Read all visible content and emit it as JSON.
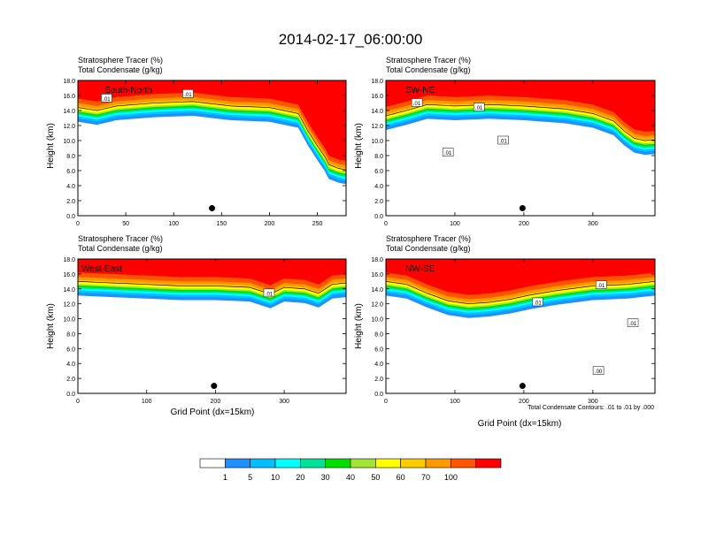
{
  "title": "2014-02-17_06:00:00",
  "colors": {
    "levels": [
      "#ffffff",
      "#1e90ff",
      "#00bfff",
      "#00ffff",
      "#00e39a",
      "#00e000",
      "#a0e632",
      "#ffff00",
      "#ffcc00",
      "#ff9900",
      "#ff5500",
      "#ff0000"
    ],
    "contour": "#000000",
    "marker": "#000000"
  },
  "chart_data": [
    {
      "type": "heatmap",
      "label": "South-North",
      "titles": [
        "Stratosphere Tracer   (%)",
        "Total Condensate   (g/kg)"
      ],
      "ylabel": "Height (km)",
      "xlabel": "",
      "xlim": [
        0,
        280
      ],
      "ylim": [
        0,
        18
      ],
      "xticks": [
        0,
        50,
        100,
        150,
        200,
        250
      ],
      "yticks": [
        "0.0",
        "2.0",
        "4.0",
        "6.0",
        "8.0",
        "10.0",
        "12.0",
        "14.0",
        "16.0",
        "18.0"
      ],
      "contour_labels": [
        {
          "text": ".01",
          "x": 30,
          "y": 15.6
        },
        {
          "text": ".01",
          "x": 115,
          "y": 16.2
        }
      ],
      "marker": {
        "x": 140,
        "y": 1.0
      },
      "tropopause": [
        [
          0,
          15.6
        ],
        [
          20,
          15.2
        ],
        [
          40,
          15.8
        ],
        [
          80,
          16.2
        ],
        [
          120,
          16.4
        ],
        [
          160,
          15.8
        ],
        [
          200,
          15.6
        ],
        [
          230,
          14.8
        ],
        [
          240,
          12.5
        ],
        [
          250,
          10.5
        ],
        [
          258,
          9.0
        ],
        [
          262,
          8.0
        ],
        [
          272,
          7.5
        ],
        [
          280,
          7.3
        ]
      ]
    },
    {
      "type": "heatmap",
      "label": "SW-NE",
      "titles": [
        "Stratosphere Tracer   (%)",
        "Total Condensate   (g/kg)"
      ],
      "ylabel": "Height (km)",
      "xlabel": "",
      "xlim": [
        0,
        390
      ],
      "ylim": [
        0,
        18
      ],
      "xticks": [
        0,
        100,
        200,
        300
      ],
      "yticks": [
        "0.0",
        "2.0",
        "4.0",
        "6.0",
        "8.0",
        "10.0",
        "12.0",
        "14.0",
        "16.0",
        "18.0"
      ],
      "contour_labels": [
        {
          "text": ".01",
          "x": 45,
          "y": 15.0
        },
        {
          "text": ".01",
          "x": 135,
          "y": 14.4
        },
        {
          "text": ".01",
          "x": 170,
          "y": 10.0
        },
        {
          "text": ".01",
          "x": 90,
          "y": 8.4
        }
      ],
      "marker": {
        "x": 198,
        "y": 1.0
      },
      "tropopause": [
        [
          0,
          14.5
        ],
        [
          30,
          15.2
        ],
        [
          60,
          16.0
        ],
        [
          100,
          15.8
        ],
        [
          150,
          16.0
        ],
        [
          200,
          15.8
        ],
        [
          260,
          15.4
        ],
        [
          300,
          14.8
        ],
        [
          330,
          13.8
        ],
        [
          345,
          12.5
        ],
        [
          360,
          11.5
        ],
        [
          375,
          11.2
        ],
        [
          390,
          11.3
        ]
      ]
    },
    {
      "type": "heatmap",
      "label": "West-East",
      "titles": [
        "Stratosphere Tracer   (%)",
        "Total Condensate   (g/kg)"
      ],
      "ylabel": "Height (km)",
      "xlabel": "Grid Point (dx=15km)",
      "xlim": [
        0,
        390
      ],
      "ylim": [
        0,
        18
      ],
      "xticks": [
        0,
        100,
        200,
        300
      ],
      "yticks": [
        "0.0",
        "2.0",
        "4.0",
        "6.0",
        "8.0",
        "10.0",
        "12.0",
        "14.0",
        "16.0",
        "18.0"
      ],
      "contour_labels": [
        {
          "text": ".01",
          "x": 278,
          "y": 13.4
        }
      ],
      "marker": {
        "x": 198,
        "y": 1.0
      },
      "tropopause": [
        [
          0,
          16.2
        ],
        [
          50,
          16.0
        ],
        [
          100,
          15.8
        ],
        [
          150,
          15.6
        ],
        [
          200,
          15.6
        ],
        [
          250,
          15.4
        ],
        [
          280,
          14.5
        ],
        [
          300,
          15.4
        ],
        [
          330,
          15.2
        ],
        [
          350,
          14.6
        ],
        [
          370,
          15.8
        ],
        [
          390,
          16.0
        ]
      ]
    },
    {
      "type": "heatmap",
      "label": "NW-SE",
      "titles": [
        "Stratosphere Tracer   (%)",
        "Total Condensate   (g/kg)"
      ],
      "ylabel": "Height (km)",
      "xlabel": "Grid Point (dx=15km)",
      "xlim": [
        0,
        390
      ],
      "ylim": [
        0,
        18
      ],
      "xticks": [
        0,
        100,
        200,
        300
      ],
      "yticks": [
        "0.0",
        "2.0",
        "4.0",
        "6.0",
        "8.0",
        "10.0",
        "12.0",
        "14.0",
        "16.0",
        "18.0"
      ],
      "contour_labels": [
        {
          "text": ".01",
          "x": 312,
          "y": 14.5
        },
        {
          "text": ".01",
          "x": 220,
          "y": 12.2
        },
        {
          "text": ".01",
          "x": 358,
          "y": 9.4
        },
        {
          "text": ".00",
          "x": 308,
          "y": 3.0
        }
      ],
      "marker": {
        "x": 198,
        "y": 1.0
      },
      "tropopause": [
        [
          0,
          16.2
        ],
        [
          30,
          15.8
        ],
        [
          60,
          14.6
        ],
        [
          90,
          13.6
        ],
        [
          120,
          13.2
        ],
        [
          150,
          13.4
        ],
        [
          180,
          13.8
        ],
        [
          210,
          14.4
        ],
        [
          250,
          15.0
        ],
        [
          300,
          15.6
        ],
        [
          350,
          15.8
        ],
        [
          390,
          16.2
        ]
      ]
    }
  ],
  "footnote": "Total Condensate Contours: .01 to .01 by .000",
  "colorbar": {
    "labels": [
      "1",
      "5",
      "10",
      "20",
      "30",
      "40",
      "50",
      "60",
      "70",
      "100"
    ]
  }
}
